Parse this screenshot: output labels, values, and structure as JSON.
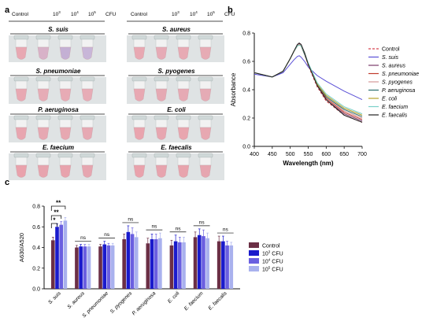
{
  "panel_letters": {
    "a": "a",
    "b": "b",
    "c": "c"
  },
  "panel_a": {
    "col_headers": [
      "Control",
      "10",
      "10",
      "10",
      "CFU"
    ],
    "col_header_exps": [
      "",
      "3",
      "4",
      "5",
      ""
    ],
    "groups": [
      {
        "name": "S. suis",
        "col": 0,
        "row": 0,
        "tubes": [
          "#e8a8b2",
          "#d8b2c8",
          "#c4b0d4",
          "#c8b6d8"
        ]
      },
      {
        "name": "S. aureus",
        "col": 1,
        "row": 0,
        "tubes": [
          "#e8a8b2",
          "#e6abb6",
          "#e7aab4",
          "#e6abb4"
        ]
      },
      {
        "name": "S. pneumoniae",
        "col": 0,
        "row": 1,
        "tubes": [
          "#e8a8b2",
          "#e6acb6",
          "#e7abb5",
          "#e7acb6"
        ]
      },
      {
        "name": "S. pyogenes",
        "col": 1,
        "row": 1,
        "tubes": [
          "#e8a8b2",
          "#e5a9b3",
          "#e6aab4",
          "#e5abb5"
        ]
      },
      {
        "name": "P. aeruginosa",
        "col": 0,
        "row": 2,
        "tubes": [
          "#e8a6b0",
          "#e6a8b2",
          "#e7a8b1",
          "#e6a9b3"
        ]
      },
      {
        "name": "E. coli",
        "col": 1,
        "row": 2,
        "tubes": [
          "#e9a4ae",
          "#e7a6b0",
          "#e8a6af",
          "#e7a8b1"
        ]
      },
      {
        "name": "E. faecium",
        "col": 0,
        "row": 3,
        "tubes": [
          "#e9a2ac",
          "#e7a4ae",
          "#e8a3ad",
          "#e6a6b0"
        ]
      },
      {
        "name": "E. faecalis",
        "col": 1,
        "row": 3,
        "tubes": [
          "#e9a2ac",
          "#e7a4ae",
          "#e8a4ad",
          "#e6a6b0"
        ]
      }
    ]
  },
  "chart_data": [
    {
      "type": "line",
      "xlabel": "Wavelength (nm)",
      "ylabel": "Absorbance",
      "xlim": [
        400,
        700
      ],
      "ylim": [
        0.0,
        0.8
      ],
      "xticks": [
        400,
        450,
        500,
        550,
        600,
        650,
        700
      ],
      "yticks": [
        "0.0",
        "0.2",
        "0.4",
        "0.6",
        "0.8"
      ],
      "legend_position": "right",
      "x": [
        400,
        450,
        480,
        500,
        510,
        520,
        525,
        530,
        540,
        550,
        575,
        600,
        650,
        700
      ],
      "series": [
        {
          "name": "Control",
          "color": "#d6454f",
          "dashed": true,
          "values": [
            0.52,
            0.49,
            0.53,
            0.62,
            0.67,
            0.71,
            0.715,
            0.71,
            0.65,
            0.57,
            0.42,
            0.32,
            0.22,
            0.17
          ]
        },
        {
          "name": "S. suis",
          "color": "#5a4fd6",
          "dashed": false,
          "values": [
            0.51,
            0.49,
            0.52,
            0.58,
            0.61,
            0.635,
            0.64,
            0.63,
            0.6,
            0.56,
            0.5,
            0.46,
            0.39,
            0.33
          ]
        },
        {
          "name": "S. aureus",
          "color": "#7a3a6a",
          "dashed": false,
          "values": [
            0.52,
            0.49,
            0.53,
            0.62,
            0.67,
            0.72,
            0.725,
            0.72,
            0.66,
            0.58,
            0.43,
            0.33,
            0.23,
            0.18
          ]
        },
        {
          "name": "S. pneumoniae",
          "color": "#c0392b",
          "dashed": false,
          "values": [
            0.52,
            0.49,
            0.53,
            0.62,
            0.67,
            0.71,
            0.72,
            0.71,
            0.65,
            0.58,
            0.43,
            0.34,
            0.24,
            0.19
          ]
        },
        {
          "name": "S. pyogenes",
          "color": "#d59a9a",
          "dashed": false,
          "values": [
            0.52,
            0.49,
            0.53,
            0.62,
            0.67,
            0.71,
            0.72,
            0.71,
            0.66,
            0.58,
            0.44,
            0.35,
            0.25,
            0.2
          ]
        },
        {
          "name": "P. aeruginosa",
          "color": "#2a6e6e",
          "dashed": false,
          "values": [
            0.52,
            0.49,
            0.53,
            0.62,
            0.67,
            0.71,
            0.715,
            0.71,
            0.65,
            0.58,
            0.44,
            0.35,
            0.26,
            0.21
          ]
        },
        {
          "name": "E. coli",
          "color": "#b8a22a",
          "dashed": false,
          "values": [
            0.52,
            0.49,
            0.53,
            0.62,
            0.67,
            0.71,
            0.715,
            0.71,
            0.66,
            0.58,
            0.44,
            0.36,
            0.27,
            0.22
          ]
        },
        {
          "name": "E. faecium",
          "color": "#7ad0c8",
          "dashed": false,
          "values": [
            0.52,
            0.49,
            0.53,
            0.62,
            0.67,
            0.71,
            0.715,
            0.71,
            0.66,
            0.59,
            0.45,
            0.37,
            0.28,
            0.23
          ]
        },
        {
          "name": "E. faecalis",
          "color": "#222222",
          "dashed": false,
          "values": [
            0.52,
            0.49,
            0.53,
            0.62,
            0.67,
            0.72,
            0.73,
            0.72,
            0.66,
            0.58,
            0.43,
            0.33,
            0.22,
            0.17
          ]
        }
      ]
    },
    {
      "type": "bar",
      "xlabel": "",
      "ylabel": "A630/A520",
      "ylim": [
        0.0,
        0.8
      ],
      "yticks": [
        "0.0",
        "0.2",
        "0.4",
        "0.6",
        "0.8"
      ],
      "categories": [
        "S. suis",
        "S. aureus",
        "S. pneumoniae",
        "S. pyogenes",
        "P. aeruginosa",
        "E. coli",
        "E. faecium",
        "E. faecalis"
      ],
      "series": [
        {
          "name": "Control",
          "legend_base": "Control",
          "legend_exp": "",
          "legend_unit": "",
          "color": "#6b2f45",
          "values": [
            0.47,
            0.4,
            0.41,
            0.48,
            0.44,
            0.42,
            0.5,
            0.46
          ],
          "errors": [
            0.03,
            0.02,
            0.02,
            0.05,
            0.05,
            0.05,
            0.05,
            0.05
          ]
        },
        {
          "name": "10^3 CFU",
          "legend_base": "10",
          "legend_exp": "3",
          "legend_unit": " CFU",
          "color": "#1a1acc",
          "values": [
            0.6,
            0.41,
            0.43,
            0.55,
            0.48,
            0.46,
            0.52,
            0.46
          ],
          "errors": [
            0.03,
            0.02,
            0.03,
            0.06,
            0.05,
            0.06,
            0.06,
            0.05
          ]
        },
        {
          "name": "10^4 CFU",
          "legend_base": "10",
          "legend_exp": "4",
          "legend_unit": " CFU",
          "color": "#6a5fe0",
          "values": [
            0.62,
            0.41,
            0.42,
            0.53,
            0.48,
            0.45,
            0.51,
            0.42
          ],
          "errors": [
            0.03,
            0.02,
            0.02,
            0.06,
            0.05,
            0.05,
            0.06,
            0.04
          ]
        },
        {
          "name": "10^5 CFU",
          "legend_base": "10",
          "legend_exp": "5",
          "legend_unit": " CFU",
          "color": "#a9b1ee",
          "values": [
            0.66,
            0.41,
            0.42,
            0.5,
            0.49,
            0.45,
            0.49,
            0.42
          ],
          "errors": [
            0.03,
            0.02,
            0.02,
            0.05,
            0.05,
            0.05,
            0.05,
            0.03
          ]
        }
      ],
      "annotations": [
        {
          "text": "**",
          "group": 0,
          "from": 0,
          "to": 3
        },
        {
          "text": "**",
          "group": 0,
          "from": 0,
          "to": 2
        },
        {
          "text": "*",
          "group": 0,
          "from": 0,
          "to": 1
        },
        {
          "text": "ns",
          "group": 1
        },
        {
          "text": "ns",
          "group": 2
        },
        {
          "text": "ns",
          "group": 3
        },
        {
          "text": "ns",
          "group": 4
        },
        {
          "text": "ns",
          "group": 5
        },
        {
          "text": "ns",
          "group": 6
        },
        {
          "text": "ns",
          "group": 7
        }
      ]
    }
  ]
}
